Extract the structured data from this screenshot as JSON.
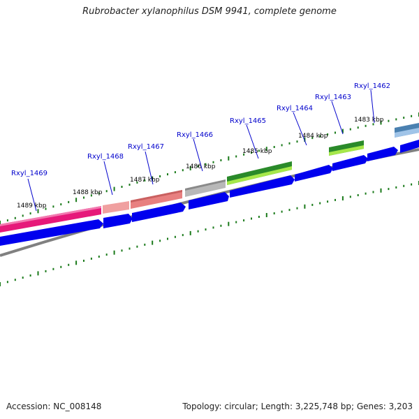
{
  "title": "Rubrobacter xylanophilus DSM 9941, complete genome",
  "footer": {
    "accession": "Accession: NC_008148",
    "topology": "Topology: circular; Length: 3,225,748 bp; Genes: 3,203"
  },
  "colors": {
    "locus_label": "#0000cc",
    "tick": "#1a7a1a",
    "backbone": "#808080",
    "cds_blue": "#0000ee",
    "magenta": "#e6197a",
    "salmon": "#e88a8a",
    "grey_feature": "#b0b0b0",
    "green_feature": "#2a8a2a",
    "lime": "#a6e84a",
    "steel_blue": "#4a80b0"
  },
  "scale_labels": [
    "1489 kbp",
    "1488 kbp",
    "1487 kbp",
    "1486 kbp",
    "1485 kbp",
    "1484 kbp",
    "1483 kbp"
  ],
  "locus_tags": [
    "Rxyl_1469",
    "Rxyl_1468",
    "Rxyl_1467",
    "Rxyl_1466",
    "Rxyl_1465",
    "Rxyl_1464",
    "Rxyl_1463",
    "Rxyl_1462"
  ]
}
